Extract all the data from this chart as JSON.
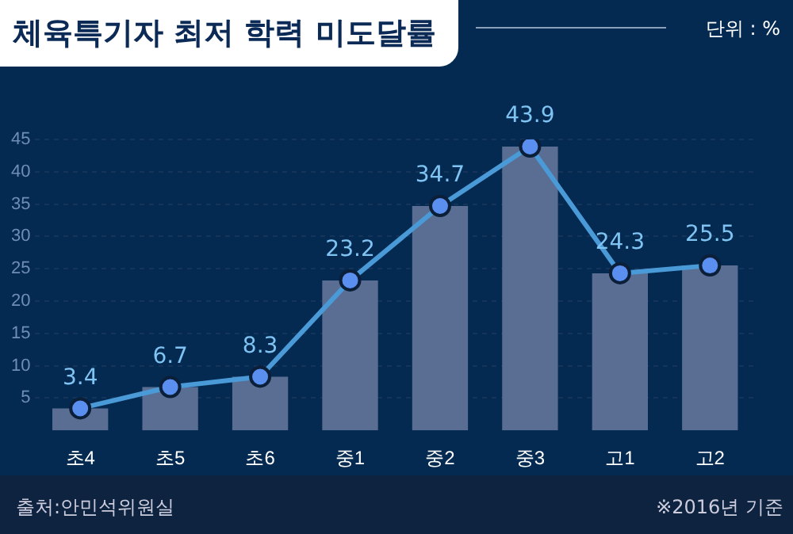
{
  "chart_data": {
    "type": "bar",
    "title": "체육특기자 최저 학력 미도달률",
    "ylabel": "단위 : %",
    "categories": [
      "초4",
      "초5",
      "초6",
      "중1",
      "중2",
      "중3",
      "고1",
      "고2"
    ],
    "series": [
      {
        "color": "#5a6e93",
        "values": [
          3.4,
          6.7,
          8.3,
          23.2,
          34.7,
          43.9,
          24.3,
          25.5
        ]
      },
      {
        "type": "line",
        "color": "#4a9ad8",
        "values": [
          3.4,
          6.7,
          8.3,
          23.2,
          34.7,
          43.9,
          24.3,
          25.5
        ],
        "value_labels": [
          "3.4",
          "6.7",
          "8.3",
          "23.2",
          "34.7",
          "43.9",
          "24.3",
          "25.5"
        ]
      }
    ],
    "ylim": [
      0,
      45
    ],
    "yticks": [
      5,
      10,
      15,
      20,
      25,
      30,
      35,
      40,
      45
    ],
    "grid": "y",
    "marker": "circle",
    "legend": false,
    "annotations": [
      "출처:안민석위원실",
      "※2016년 기준"
    ]
  }
}
